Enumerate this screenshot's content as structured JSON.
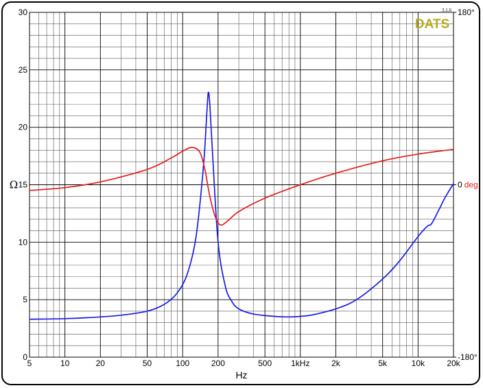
{
  "brand": {
    "name": "DATS",
    "version": "3.1.6"
  },
  "chart_data": {
    "type": "line",
    "title": "",
    "xlabel": "Hz",
    "ylabel": "Ω",
    "x_scale": "log",
    "xlim": [
      5,
      20000
    ],
    "ylim": [
      0,
      30
    ],
    "grid": true,
    "x_ticks": [
      {
        "value": 5,
        "label": "5"
      },
      {
        "value": 10,
        "label": "10"
      },
      {
        "value": 20,
        "label": "20"
      },
      {
        "value": 50,
        "label": "50"
      },
      {
        "value": 100,
        "label": "100"
      },
      {
        "value": 200,
        "label": "200"
      },
      {
        "value": 500,
        "label": "500"
      },
      {
        "value": 1000,
        "label": "1kHz"
      },
      {
        "value": 2000,
        "label": "2k"
      },
      {
        "value": 5000,
        "label": "5k"
      },
      {
        "value": 10000,
        "label": "10k"
      },
      {
        "value": 20000,
        "label": "20k"
      }
    ],
    "y_ticks": [
      0,
      5,
      10,
      15,
      20,
      25,
      30
    ],
    "phase_axis": {
      "range_deg": [
        -180,
        180
      ],
      "ticks": [
        {
          "deg": 180,
          "label": "180°"
        },
        {
          "deg": 0,
          "label": "0",
          "unit": "deg"
        },
        {
          "deg": -180,
          "label": "-180°"
        }
      ]
    },
    "series": [
      {
        "kind": "impedance",
        "color": "#1a1ae6",
        "x": [
          5,
          10,
          20,
          30,
          50,
          70,
          90,
          110,
          130,
          150,
          160,
          165,
          170,
          180,
          200,
          230,
          260,
          300,
          400,
          600,
          800,
          1000,
          1300,
          2000,
          3000,
          5000,
          7000,
          10000,
          12000,
          13000,
          15000,
          17000,
          20000
        ],
        "y": [
          3.3,
          3.35,
          3.5,
          3.65,
          4.0,
          4.6,
          5.6,
          7.3,
          10.5,
          16.5,
          21.0,
          23.0,
          22.0,
          17.5,
          10.0,
          6.2,
          4.9,
          4.2,
          3.75,
          3.55,
          3.5,
          3.55,
          3.7,
          4.2,
          5.0,
          6.8,
          8.4,
          10.5,
          11.4,
          11.6,
          12.8,
          13.9,
          15.1
        ]
      },
      {
        "kind": "phase",
        "color": "#e61a1a",
        "x": [
          5,
          10,
          20,
          50,
          80,
          100,
          120,
          140,
          155,
          170,
          190,
          210,
          240,
          300,
          500,
          1000,
          2000,
          5000,
          10000,
          20000
        ],
        "deg": [
          -6,
          -3,
          3,
          16,
          28,
          35,
          39,
          34,
          15,
          -12,
          -34,
          -42,
          -38,
          -28,
          -14,
          0,
          12,
          25,
          32,
          37
        ]
      }
    ]
  }
}
